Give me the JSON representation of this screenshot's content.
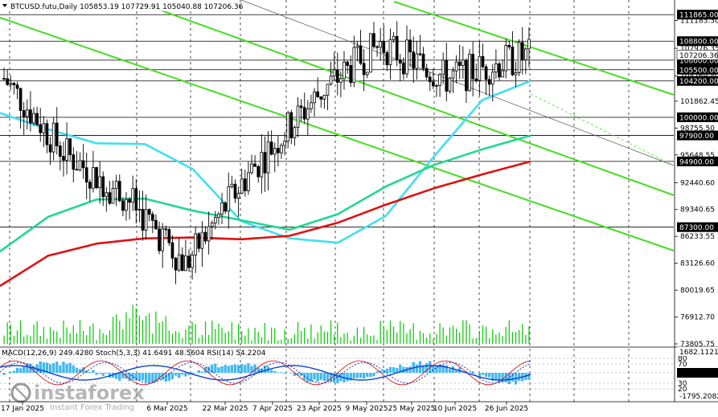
{
  "header": {
    "symbol": "BTCUSD.futu,Daily",
    "ohlc": "105853.19 107729.91 105040.88 107206.36"
  },
  "indicators_header": {
    "macd": "MACD(12,26,9) 249.4280",
    "stoch": "Stoch(5,3,3) 41.6491 48.5604",
    "rsi": "RSI(14) 54.2204"
  },
  "watermark": {
    "brand": "instaforex",
    "tagline": "Instant Forex Trading"
  },
  "colors": {
    "candle": "#000000",
    "ma_fast": "#40e0f0",
    "ma_mid": "#20d890",
    "ma_slow": "#e01010",
    "channel": "#44dd22",
    "volume": "#00cc00",
    "price_badge": "#000000",
    "macd_hist": "#40b8f0",
    "stoch_main": "#cc0000",
    "stoch_signal": "#0000aa",
    "rsi": "#1040d0"
  },
  "chart_data": {
    "type": "candlestick",
    "x_labels": [
      "17 Jan 2025",
      "6 Mar 2025",
      "22 Mar 2025",
      "7 Apr 2025",
      "23 Apr 2025",
      "9 May 2025",
      "25 May 2025",
      "10 Jun 2025",
      "26 Jun 2025"
    ],
    "y_ticks": [
      "111183.30",
      "107976.35",
      "104769.40",
      "101862.45",
      "98755.50",
      "95648.55",
      "92440.60",
      "89340.65",
      "86233.55",
      "83126.60",
      "80019.65",
      "76912.70",
      "73805.75"
    ],
    "price_levels": [
      "111865.00",
      "108800.00",
      "106600.00",
      "105500.00",
      "104200.00",
      "100000.00",
      "97900.00",
      "94900.00",
      "87300.00"
    ],
    "current_price": "107206.36",
    "ylim": [
      73805,
      113000
    ],
    "key_prices": [
      {
        "date": "17 Jan 2025",
        "price": 105000
      },
      {
        "date": "6 Mar 2025",
        "price": 90000
      },
      {
        "date": "22 Mar 2025",
        "price": 85000
      },
      {
        "date": "7 Apr 2025",
        "price": 82000
      },
      {
        "date": "23 Apr 2025",
        "price": 95000
      },
      {
        "date": "9 May 2025",
        "price": 103500
      },
      {
        "date": "25 May 2025",
        "price": 108500
      },
      {
        "date": "10 Jun 2025",
        "price": 107500
      },
      {
        "date": "26 Jun 2025",
        "price": 107206
      }
    ],
    "series": [
      {
        "name": "",
        "role": "fast MA (cyan)",
        "values": [
          100500,
          98600,
          97000,
          96900,
          94000,
          88000,
          86000,
          85500,
          88600,
          95500,
          102000,
          104200
        ]
      },
      {
        "name": "",
        "role": "mid MA (green)",
        "values": [
          84500,
          88500,
          90500,
          90600,
          89200,
          88100,
          87000,
          88800,
          92000,
          94500,
          96300,
          97900
        ]
      },
      {
        "name": "",
        "role": "slow MA (red)",
        "values": [
          80500,
          84000,
          85400,
          86000,
          86100,
          85900,
          86300,
          87800,
          89900,
          91800,
          93400,
          94900
        ]
      }
    ],
    "oscillators": {
      "macd": {
        "max_label": "1682.1121",
        "min_label": "-1795.2082",
        "current": 249.428
      },
      "stoch_levels": [
        "80",
        "70",
        "50",
        "30",
        "20"
      ],
      "stoch": {
        "main": 41.6491,
        "signal": 48.5604
      },
      "rsi": {
        "value": 54.2204
      }
    }
  }
}
